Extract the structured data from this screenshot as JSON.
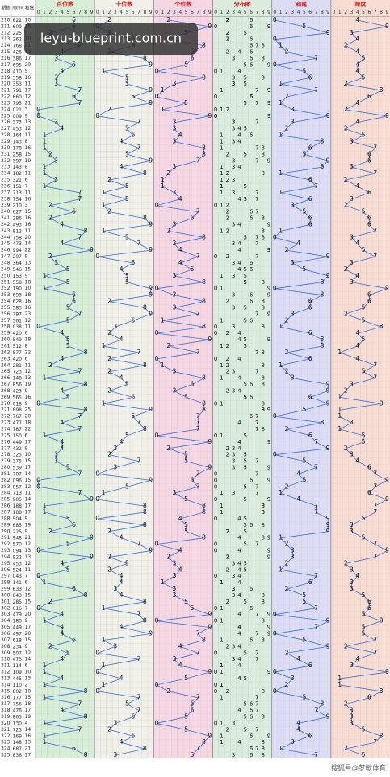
{
  "header": {
    "period": "期数",
    "number": "开奖号码",
    "sum": "和值"
  },
  "columns": [
    0,
    1,
    2,
    3,
    4,
    5,
    6,
    7,
    8,
    9
  ],
  "sections": [
    {
      "title": "百位数",
      "color": "#d6efd6"
    },
    {
      "title": "十位数",
      "color": "#f1f1e9"
    },
    {
      "title": "个位数",
      "color": "#f6d6e2"
    },
    {
      "title": "分布图",
      "color": "#d9ecdd"
    },
    {
      "title": "和尾",
      "color": "#dcdcf6"
    },
    {
      "title": "跨度",
      "color": "#f9ddd2"
    }
  ],
  "line_color": "#3a6fdc",
  "rows": [
    {
      "p": 210,
      "d": [
        6,
        2,
        2
      ],
      "s": 10,
      "t": 0,
      "k": 4
    },
    {
      "p": 211,
      "d": [
        6,
        0,
        9
      ],
      "s": 15,
      "t": 5,
      "k": 9
    },
    {
      "p": 212,
      "d": [
        2,
        2,
        5
      ],
      "s": 9,
      "t": 9,
      "k": 3
    },
    {
      "p": 213,
      "d": [
        2,
        6,
        2
      ],
      "s": 10,
      "t": 0,
      "k": 4
    },
    {
      "p": 214,
      "d": [
        7,
        6,
        8
      ],
      "s": 21,
      "t": 1,
      "k": 2
    },
    {
      "p": 215,
      "d": [
        4,
        2,
        6
      ],
      "s": 12,
      "t": 2,
      "k": 4
    },
    {
      "p": 216,
      "d": [
        3,
        8,
        6
      ],
      "s": 17,
      "t": 7,
      "k": 5
    },
    {
      "p": 217,
      "d": [
        6,
        9,
        5
      ],
      "s": 20,
      "t": 0,
      "k": 4
    },
    {
      "p": 218,
      "d": [
        4,
        1,
        0
      ],
      "s": 5,
      "t": 5,
      "k": 4
    },
    {
      "p": 219,
      "d": [
        3,
        5,
        8
      ],
      "s": 16,
      "t": 6,
      "k": 5
    },
    {
      "p": 220,
      "d": [
        3,
        5,
        3
      ],
      "s": 11,
      "t": 1,
      "k": 2
    },
    {
      "p": 221,
      "d": [
        7,
        9,
        1
      ],
      "s": 17,
      "t": 7,
      "k": 8
    },
    {
      "p": 222,
      "d": [
        6,
        6,
        0
      ],
      "s": 12,
      "t": 2,
      "k": 6
    },
    {
      "p": 223,
      "d": [
        7,
        9,
        5
      ],
      "s": 21,
      "t": 1,
      "k": 4
    },
    {
      "p": 224,
      "d": [
        0,
        2,
        1
      ],
      "s": 3,
      "t": 3,
      "k": 2
    },
    {
      "p": 225,
      "d": [
        0,
        0,
        9
      ],
      "s": 9,
      "t": 9,
      "k": 9
    },
    {
      "p": 226,
      "d": [
        3,
        7,
        3
      ],
      "s": 13,
      "t": 3,
      "k": 4
    },
    {
      "p": 227,
      "d": [
        4,
        5,
        3
      ],
      "s": 12,
      "t": 2,
      "k": 2
    },
    {
      "p": 228,
      "d": [
        1,
        6,
        4
      ],
      "s": 11,
      "t": 1,
      "k": 5
    },
    {
      "p": 229,
      "d": [
        1,
        4,
        3
      ],
      "s": 8,
      "t": 8,
      "k": 3
    },
    {
      "p": 230,
      "d": [
        1,
        7,
        8
      ],
      "s": 16,
      "t": 6,
      "k": 7
    },
    {
      "p": 231,
      "d": [
        2,
        5,
        8
      ],
      "s": 15,
      "t": 5,
      "k": 6
    },
    {
      "p": 232,
      "d": [
        3,
        9,
        7
      ],
      "s": 19,
      "t": 9,
      "k": 6
    },
    {
      "p": 233,
      "d": [
        1,
        4,
        3
      ],
      "s": 8,
      "t": 8,
      "k": 3
    },
    {
      "p": 234,
      "d": [
        1,
        8,
        2
      ],
      "s": 11,
      "t": 1,
      "k": 7
    },
    {
      "p": 235,
      "d": [
        3,
        2,
        1
      ],
      "s": 6,
      "t": 6,
      "k": 2
    },
    {
      "p": 236,
      "d": [
        1,
        5,
        1
      ],
      "s": 7,
      "t": 7,
      "k": 4
    },
    {
      "p": 237,
      "d": [
        7,
        1,
        3
      ],
      "s": 11,
      "t": 1,
      "k": 6
    },
    {
      "p": 238,
      "d": [
        7,
        5,
        4
      ],
      "s": 16,
      "t": 6,
      "k": 3
    },
    {
      "p": 239,
      "d": [
        2,
        1,
        0
      ],
      "s": 3,
      "t": 3,
      "k": 2
    },
    {
      "p": 240,
      "d": [
        6,
        2,
        7
      ],
      "s": 15,
      "t": 5,
      "k": 5
    },
    {
      "p": 241,
      "d": [
        2,
        8,
        6
      ],
      "s": 16,
      "t": 6,
      "k": 6
    },
    {
      "p": 242,
      "d": [
        4,
        9,
        3
      ],
      "s": 16,
      "t": 6,
      "k": 6
    },
    {
      "p": 243,
      "d": [
        8,
        1,
        2
      ],
      "s": 11,
      "t": 1,
      "k": 7
    },
    {
      "p": 244,
      "d": [
        7,
        5,
        8
      ],
      "s": 20,
      "t": 0,
      "k": 3
    },
    {
      "p": 245,
      "d": [
        4,
        7,
        3
      ],
      "s": 14,
      "t": 4,
      "k": 4
    },
    {
      "p": 246,
      "d": [
        9,
        9,
        4
      ],
      "s": 22,
      "t": 2,
      "k": 5
    },
    {
      "p": 247,
      "d": [
        2,
        0,
        7
      ],
      "s": 9,
      "t": 9,
      "k": 7
    },
    {
      "p": 248,
      "d": [
        3,
        6,
        4
      ],
      "s": 13,
      "t": 3,
      "k": 3
    },
    {
      "p": 249,
      "d": [
        5,
        4,
        6
      ],
      "s": 15,
      "t": 5,
      "k": 2
    },
    {
      "p": 250,
      "d": [
        1,
        5,
        3
      ],
      "s": 9,
      "t": 9,
      "k": 4
    },
    {
      "p": 251,
      "d": [
        5,
        5,
        8
      ],
      "s": 18,
      "t": 8,
      "k": 3
    },
    {
      "p": 252,
      "d": [
        1,
        9,
        0
      ],
      "s": 10,
      "t": 0,
      "k": 9
    },
    {
      "p": 253,
      "d": [
        6,
        9,
        3
      ],
      "s": 18,
      "t": 8,
      "k": 6
    },
    {
      "p": 254,
      "d": [
        6,
        2,
        8
      ],
      "s": 16,
      "t": 6,
      "k": 6
    },
    {
      "p": 255,
      "d": [
        5,
        8,
        3
      ],
      "s": 16,
      "t": 6,
      "k": 5
    },
    {
      "p": 256,
      "d": [
        7,
        9,
        7
      ],
      "s": 23,
      "t": 3,
      "k": 2
    },
    {
      "p": 257,
      "d": [
        5,
        6,
        1
      ],
      "s": 12,
      "t": 2,
      "k": 5
    },
    {
      "p": 258,
      "d": [
        0,
        3,
        8
      ],
      "s": 11,
      "t": 1,
      "k": 8
    },
    {
      "p": 259,
      "d": [
        4,
        2,
        0
      ],
      "s": 6,
      "t": 6,
      "k": 4
    },
    {
      "p": 260,
      "d": [
        5,
        4,
        9
      ],
      "s": 18,
      "t": 8,
      "k": 5
    },
    {
      "p": 261,
      "d": [
        5,
        1,
        2
      ],
      "s": 8,
      "t": 8,
      "k": 4
    },
    {
      "p": 262,
      "d": [
        8,
        7,
        7
      ],
      "s": 22,
      "t": 2,
      "k": 1
    },
    {
      "p": 263,
      "d": [
        4,
        2,
        0
      ],
      "s": 6,
      "t": 6,
      "k": 4
    },
    {
      "p": 264,
      "d": [
        2,
        8,
        1
      ],
      "s": 11,
      "t": 1,
      "k": 7
    },
    {
      "p": 265,
      "d": [
        7,
        2,
        3
      ],
      "s": 12,
      "t": 2,
      "k": 5
    },
    {
      "p": 266,
      "d": [
        1,
        4,
        8
      ],
      "s": 13,
      "t": 3,
      "k": 7
    },
    {
      "p": 267,
      "d": [
        8,
        5,
        6
      ],
      "s": 19,
      "t": 9,
      "k": 3
    },
    {
      "p": 268,
      "d": [
        4,
        2,
        3
      ],
      "s": 9,
      "t": 9,
      "k": 2
    },
    {
      "p": 269,
      "d": [
        5,
        6,
        5
      ],
      "s": 16,
      "t": 6,
      "k": 1
    },
    {
      "p": 270,
      "d": [
        0,
        1,
        8
      ],
      "s": 9,
      "t": 9,
      "k": 8
    },
    {
      "p": 271,
      "d": [
        8,
        9,
        8
      ],
      "s": 25,
      "t": 5,
      "k": 1
    },
    {
      "p": 272,
      "d": [
        7,
        6,
        7
      ],
      "s": 20,
      "t": 0,
      "k": 1
    },
    {
      "p": 273,
      "d": [
        4,
        7,
        7
      ],
      "s": 18,
      "t": 8,
      "k": 3
    },
    {
      "p": 274,
      "d": [
        7,
        8,
        7
      ],
      "s": 22,
      "t": 2,
      "k": 1
    },
    {
      "p": 275,
      "d": [
        1,
        5,
        0
      ],
      "s": 6,
      "t": 6,
      "k": 5
    },
    {
      "p": 276,
      "d": [
        4,
        4,
        9
      ],
      "s": 17,
      "t": 7,
      "k": 5
    },
    {
      "p": 277,
      "d": [
        4,
        3,
        2
      ],
      "s": 9,
      "t": 9,
      "k": 2
    },
    {
      "p": 278,
      "d": [
        3,
        2,
        5
      ],
      "s": 10,
      "t": 0,
      "k": 3
    },
    {
      "p": 279,
      "d": [
        3,
        7,
        5
      ],
      "s": 15,
      "t": 5,
      "k": 4
    },
    {
      "p": 280,
      "d": [
        5,
        3,
        9
      ],
      "s": 17,
      "t": 7,
      "k": 6
    },
    {
      "p": 281,
      "d": [
        7,
        0,
        7
      ],
      "s": 14,
      "t": 4,
      "k": 7
    },
    {
      "p": 282,
      "d": [
        0,
        9,
        6
      ],
      "s": 15,
      "t": 5,
      "k": 9
    },
    {
      "p": 283,
      "d": [
        0,
        5,
        7
      ],
      "s": 12,
      "t": 2,
      "k": 7
    },
    {
      "p": 284,
      "d": [
        7,
        1,
        3
      ],
      "s": 11,
      "t": 1,
      "k": 6
    },
    {
      "p": 285,
      "d": [
        9,
        0,
        5
      ],
      "s": 14,
      "t": 4,
      "k": 9
    },
    {
      "p": 286,
      "d": [
        1,
        8,
        8
      ],
      "s": 17,
      "t": 7,
      "k": 7
    },
    {
      "p": 287,
      "d": [
        1,
        8,
        8
      ],
      "s": 17,
      "t": 7,
      "k": 7
    },
    {
      "p": 288,
      "d": [
        5,
        0,
        4
      ],
      "s": 9,
      "t": 9,
      "k": 5
    },
    {
      "p": 289,
      "d": [
        6,
        8,
        5
      ],
      "s": 19,
      "t": 9,
      "k": 3
    },
    {
      "p": 290,
      "d": [
        2,
        2,
        5
      ],
      "s": 9,
      "t": 9,
      "k": 3
    },
    {
      "p": 291,
      "d": [
        9,
        4,
        8
      ],
      "s": 21,
      "t": 1,
      "k": 5
    },
    {
      "p": 292,
      "d": [
        5,
        7,
        0
      ],
      "s": 12,
      "t": 2,
      "k": 7
    },
    {
      "p": 293,
      "d": [
        0,
        9,
        4
      ],
      "s": 13,
      "t": 3,
      "k": 9
    },
    {
      "p": 294,
      "d": [
        9,
        2,
        2
      ],
      "s": 13,
      "t": 3,
      "k": 7
    },
    {
      "p": 295,
      "d": [
        4,
        5,
        3
      ],
      "s": 12,
      "t": 2,
      "k": 2
    },
    {
      "p": 296,
      "d": [
        5,
        2,
        4
      ],
      "s": 11,
      "t": 1,
      "k": 3
    },
    {
      "p": 297,
      "d": [
        0,
        4,
        3
      ],
      "s": 7,
      "t": 7,
      "k": 4
    },
    {
      "p": 298,
      "d": [
        1,
        4,
        1
      ],
      "s": 6,
      "t": 6,
      "k": 3
    },
    {
      "p": 299,
      "d": [
        6,
        3,
        3
      ],
      "s": 12,
      "t": 2,
      "k": 3
    },
    {
      "p": 300,
      "d": [
        8,
        4,
        3
      ],
      "s": 15,
      "t": 5,
      "k": 5
    },
    {
      "p": 301,
      "d": [
        2,
        8,
        5
      ],
      "s": 15,
      "t": 5,
      "k": 6
    },
    {
      "p": 302,
      "d": [
        0,
        1,
        6
      ],
      "s": 7,
      "t": 7,
      "k": 6
    },
    {
      "p": 303,
      "d": [
        4,
        7,
        9
      ],
      "s": 20,
      "t": 0,
      "k": 5
    },
    {
      "p": 304,
      "d": [
        1,
        8,
        0
      ],
      "s": 9,
      "t": 9,
      "k": 8
    },
    {
      "p": 305,
      "d": [
        4,
        4,
        9
      ],
      "s": 17,
      "t": 7,
      "k": 5
    },
    {
      "p": 306,
      "d": [
        4,
        9,
        7
      ],
      "s": 20,
      "t": 0,
      "k": 5
    },
    {
      "p": 307,
      "d": [
        6,
        1,
        8
      ],
      "s": 15,
      "t": 5,
      "k": 7
    },
    {
      "p": 308,
      "d": [
        2,
        3,
        4
      ],
      "s": 9,
      "t": 9,
      "k": 2
    },
    {
      "p": 309,
      "d": [
        5,
        0,
        7
      ],
      "s": 12,
      "t": 2,
      "k": 7
    },
    {
      "p": 310,
      "d": [
        4,
        7,
        3
      ],
      "s": 14,
      "t": 4,
      "k": 4
    },
    {
      "p": 311,
      "d": [
        1,
        1,
        4
      ],
      "s": 6,
      "t": 6,
      "k": 3
    },
    {
      "p": 312,
      "d": [
        1,
        0,
        9
      ],
      "s": 10,
      "t": 0,
      "k": 9
    },
    {
      "p": 313,
      "d": [
        4,
        4,
        5
      ],
      "s": 13,
      "t": 3,
      "k": 1
    },
    {
      "p": 314,
      "d": [
        1,
        1,
        0
      ],
      "s": 2,
      "t": 2,
      "k": 1
    },
    {
      "p": 315,
      "d": [
        8,
        0,
        2
      ],
      "s": 10,
      "t": 0,
      "k": 8
    },
    {
      "p": 316,
      "d": [
        1,
        7,
        7
      ],
      "s": 15,
      "t": 5,
      "k": 6
    },
    {
      "p": 317,
      "d": [
        7,
        5,
        6
      ],
      "s": 18,
      "t": 8,
      "k": 2
    },
    {
      "p": 318,
      "d": [
        4,
        7,
        6
      ],
      "s": 17,
      "t": 7,
      "k": 3
    },
    {
      "p": 319,
      "d": [
        8,
        6,
        5
      ],
      "s": 19,
      "t": 9,
      "k": 3
    },
    {
      "p": 320,
      "d": [
        1,
        3,
        0
      ],
      "s": 4,
      "t": 4,
      "k": 3
    },
    {
      "p": 321,
      "d": [
        7,
        2,
        5
      ],
      "s": 14,
      "t": 4,
      "k": 5
    },
    {
      "p": 322,
      "d": [
        1,
        6,
        9
      ],
      "s": 16,
      "t": 6,
      "k": 8
    },
    {
      "p": 323,
      "d": [
        1,
        4,
        8
      ],
      "s": 13,
      "t": 3,
      "k": 7
    },
    {
      "p": 324,
      "d": [
        6,
        8,
        7
      ],
      "s": 21,
      "t": 1,
      "k": 2
    },
    {
      "p": 325,
      "d": [
        8,
        3,
        6
      ],
      "s": 17,
      "t": 7,
      "k": 5
    }
  ],
  "watermark": "leyu-blueprint.com.cn",
  "footer": "搜狐号@梦敏体育"
}
